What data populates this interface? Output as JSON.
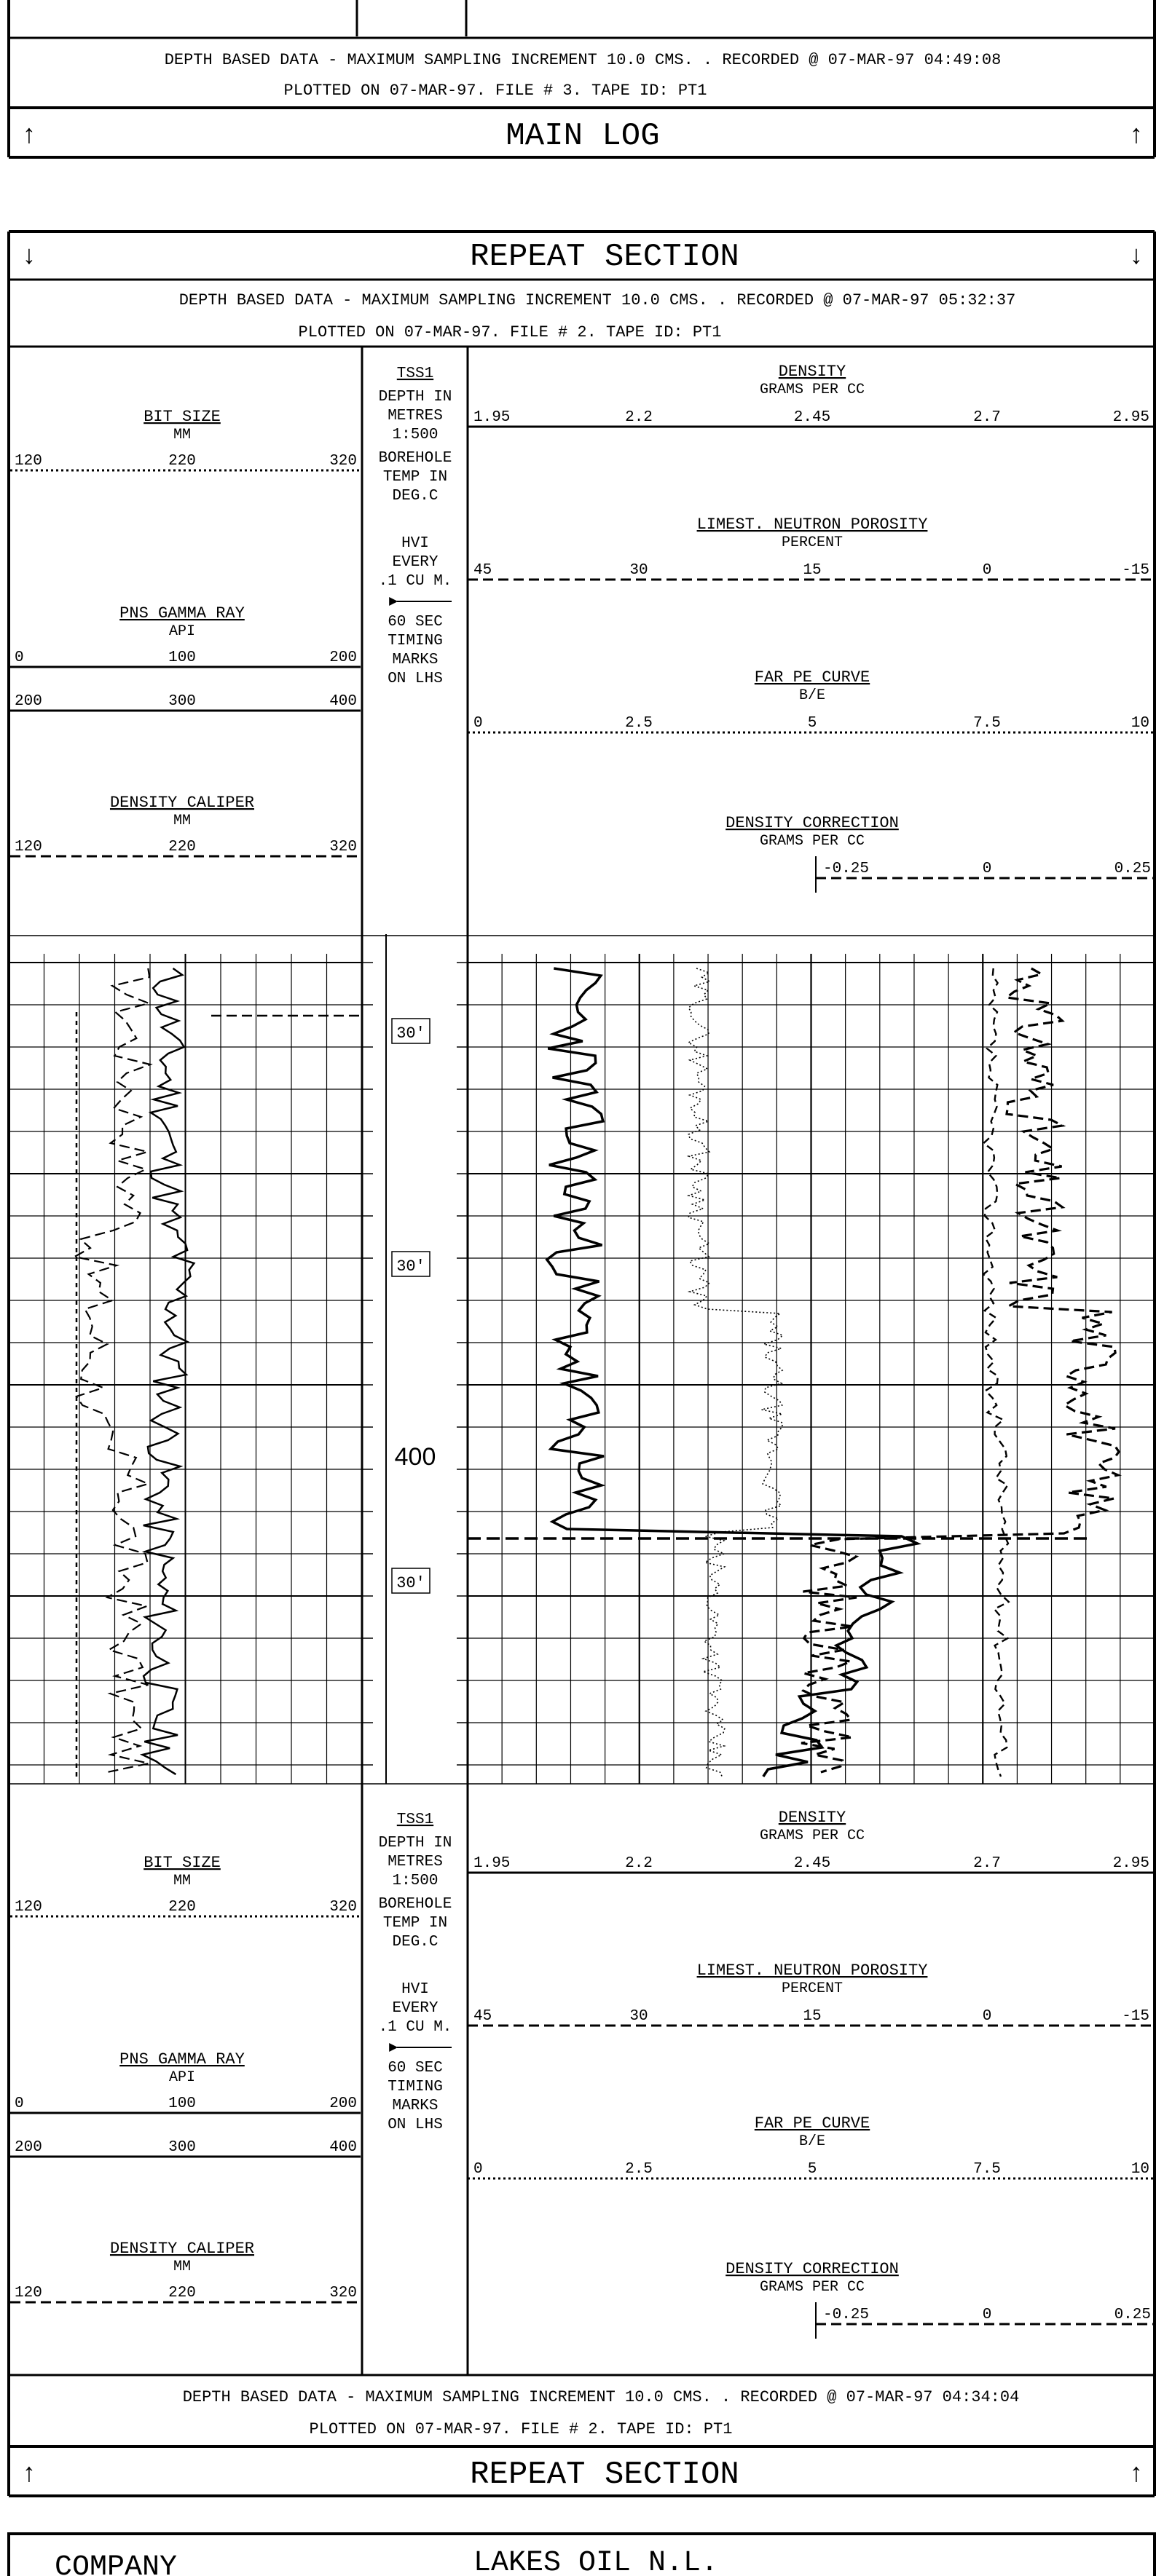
{
  "main_log": {
    "footer_info_1": "DEPTH BASED DATA - MAXIMUM SAMPLING INCREMENT  10.0 CMS.   . RECORDED @  07-MAR-97 04:49:08",
    "footer_info_2": "PLOTTED ON 07-MAR-97. FILE #  3. TAPE ID: PT1",
    "title": "MAIN LOG"
  },
  "repeat_section": {
    "title": "REPEAT SECTION",
    "header_info_1": "DEPTH BASED DATA - MAXIMUM SAMPLING INCREMENT  10.0 CMS.   . RECORDED @  07-MAR-97 05:32:37",
    "header_info_2": "PLOTTED ON 07-MAR-97. FILE #  2. TAPE ID: PT1",
    "footer_info_1": "DEPTH BASED DATA - MAXIMUM SAMPLING INCREMENT  10.0 CMS.   . RECORDED @  07-MAR-97 04:34:04",
    "footer_info_2": "PLOTTED ON 07-MAR-97. FILE #  2. TAPE ID: PT1",
    "depth_labels": [
      "30'",
      "30'",
      "400",
      "30'"
    ],
    "left_curves": [
      {
        "name": "BIT SIZE",
        "unit": "MM",
        "scale": [
          "120",
          "220",
          "320"
        ],
        "style": "dotted"
      },
      {
        "name": "PNS GAMMA RAY",
        "unit": "API",
        "scale": [
          "0",
          "100",
          "200"
        ],
        "style": "solid"
      },
      {
        "name": "",
        "unit": "",
        "scale": [
          "200",
          "300",
          "400"
        ],
        "style": "solid"
      },
      {
        "name": "DENSITY CALIPER",
        "unit": "MM",
        "scale": [
          "120",
          "220",
          "320"
        ],
        "style": "dashed"
      }
    ],
    "center_track": [
      "TSS1",
      "DEPTH IN",
      "METRES",
      "1:500",
      "BOREHOLE",
      "TEMP IN",
      "DEG.C",
      "HVI",
      "EVERY",
      ".1 CU M.",
      "60 SEC",
      "TIMING",
      "MARKS",
      "ON LHS"
    ],
    "right_curves": [
      {
        "name": "DENSITY",
        "unit": "GRAMS PER CC",
        "scale": [
          "1.95",
          "2.2",
          "2.45",
          "2.7",
          "2.95"
        ],
        "style": "solid"
      },
      {
        "name": "LIMEST. NEUTRON POROSITY",
        "unit": "PERCENT",
        "scale": [
          "45",
          "30",
          "15",
          "0",
          "-15"
        ],
        "style": "dashed"
      },
      {
        "name": "FAR PE CURVE",
        "unit": "B/E",
        "scale": [
          "0",
          "2.5",
          "5",
          "7.5",
          "10"
        ],
        "style": "dotted"
      },
      {
        "name": "DENSITY CORRECTION",
        "unit": "GRAMS PER CC",
        "scale": [
          "-0.25",
          "0",
          "0.25"
        ],
        "style": "dashed"
      }
    ]
  },
  "company_block": {
    "label": "COMPANY",
    "value": "LAKES OIL N.L."
  }
}
